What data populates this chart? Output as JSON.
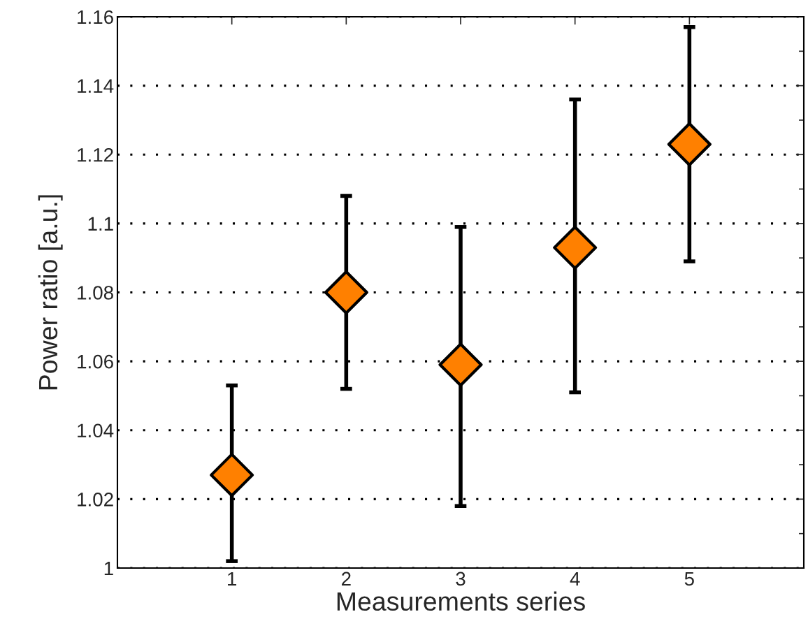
{
  "chart_data": {
    "type": "scatter",
    "xlabel": "Measurements series",
    "ylabel": "Power ratio [a.u.]",
    "x": [
      1,
      2,
      3,
      4,
      5
    ],
    "values": [
      1.027,
      1.08,
      1.059,
      1.093,
      1.123
    ],
    "errors": [
      [
        1.002,
        1.053
      ],
      [
        1.052,
        1.108
      ],
      [
        1.018,
        1.099
      ],
      [
        1.051,
        1.136
      ],
      [
        1.089,
        1.157
      ]
    ],
    "color": "#ff8000",
    "marker": "diamond",
    "grid": "y",
    "xlim": [
      0,
      6
    ],
    "xticks": [
      1,
      2,
      3,
      4,
      5
    ],
    "ylim": [
      1,
      1.16
    ],
    "yticks": [
      1,
      1.02,
      1.04,
      1.06,
      1.08,
      1.1,
      1.12,
      1.14,
      1.16
    ]
  }
}
